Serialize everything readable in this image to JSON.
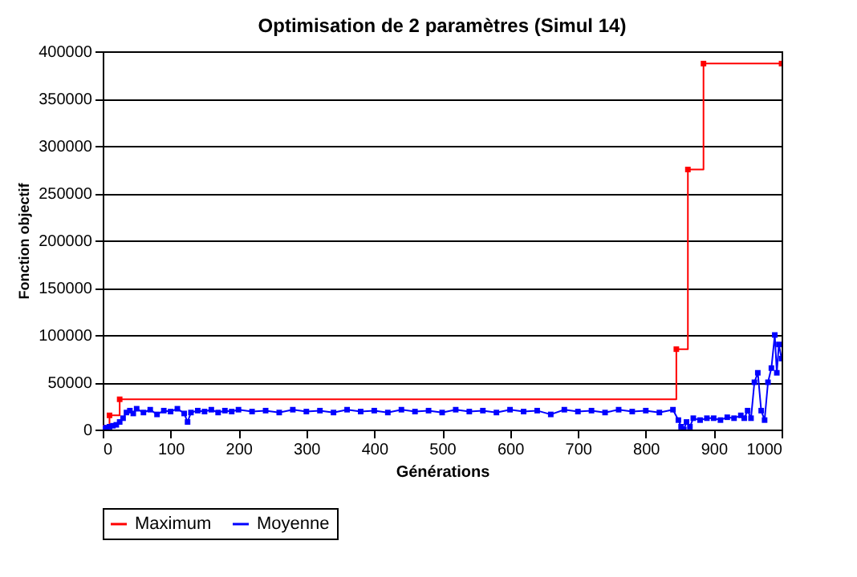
{
  "chart_data": {
    "type": "line",
    "title": "Optimisation de 2 paramètres (Simul 14)",
    "xlabel": "Générations",
    "ylabel": "Fonction objectif",
    "xlim": [
      0,
      1000
    ],
    "xticks": [
      0,
      100,
      200,
      300,
      400,
      500,
      600,
      700,
      800,
      900,
      1000
    ],
    "ylim": [
      0,
      400000
    ],
    "yticks": [
      0,
      50000,
      100000,
      150000,
      200000,
      250000,
      300000,
      350000,
      400000
    ],
    "grid": "y",
    "legend": "bottom",
    "marker": "square",
    "series": [
      {
        "name": "Maximum",
        "type": "step",
        "color": "#ff0000",
        "x": [
          0,
          10,
          25,
          845,
          862,
          885,
          1000
        ],
        "values": [
          2000,
          15000,
          32000,
          85000,
          275000,
          387000,
          387000
        ]
      },
      {
        "name": "Moyenne",
        "type": "line",
        "color": "#0000ff",
        "x": [
          0,
          5,
          10,
          15,
          20,
          25,
          30,
          35,
          40,
          45,
          50,
          60,
          70,
          80,
          90,
          100,
          110,
          120,
          125,
          130,
          140,
          150,
          160,
          170,
          180,
          190,
          200,
          220,
          240,
          260,
          280,
          300,
          320,
          340,
          360,
          380,
          400,
          420,
          440,
          460,
          480,
          500,
          520,
          540,
          560,
          580,
          600,
          620,
          640,
          660,
          680,
          700,
          720,
          740,
          760,
          780,
          800,
          820,
          840,
          848,
          852,
          856,
          860,
          865,
          870,
          880,
          890,
          900,
          910,
          920,
          930,
          940,
          945,
          950,
          955,
          960,
          965,
          970,
          975,
          980,
          985,
          990,
          993,
          996,
          1000
        ],
        "values": [
          1000,
          2000,
          3000,
          4000,
          5000,
          8000,
          12000,
          18000,
          20000,
          17000,
          22000,
          18000,
          21000,
          16000,
          20000,
          19000,
          22000,
          17000,
          8000,
          18000,
          20000,
          19000,
          21000,
          18000,
          20000,
          19000,
          21000,
          19000,
          20000,
          18000,
          21000,
          19000,
          20000,
          18000,
          21000,
          19000,
          20000,
          18000,
          21000,
          19000,
          20000,
          18000,
          21000,
          19000,
          20000,
          18000,
          21000,
          19000,
          20000,
          16000,
          21000,
          19000,
          20000,
          18000,
          21000,
          19000,
          20000,
          18000,
          21000,
          10000,
          3000,
          0,
          8000,
          3000,
          12000,
          10000,
          12000,
          12000,
          10000,
          13000,
          12000,
          15000,
          12000,
          20000,
          12000,
          50000,
          60000,
          20000,
          10000,
          50000,
          65000,
          100000,
          60000,
          90000,
          75000
        ]
      }
    ]
  }
}
